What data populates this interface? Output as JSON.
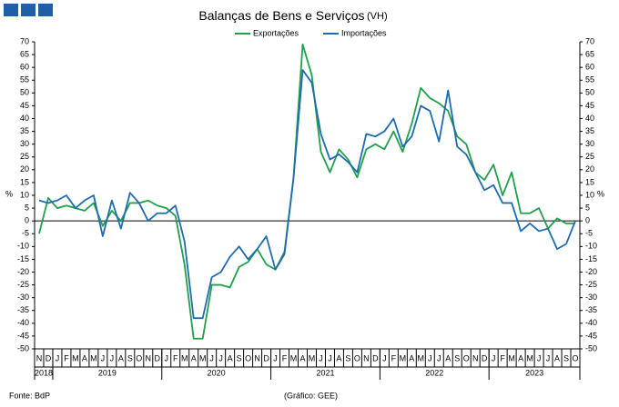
{
  "chart_data": {
    "type": "line",
    "title": "Balanças de Bens e Serviços",
    "title_note": "(VH)",
    "ylabel": "%",
    "y2label": "%",
    "source": "Fonte: BdP",
    "credit": "(Gráfico: GEE)",
    "categories": [
      "N",
      "D",
      "J",
      "F",
      "M",
      "A",
      "M",
      "J",
      "J",
      "A",
      "S",
      "O",
      "N",
      "D",
      "J",
      "F",
      "M",
      "A",
      "M",
      "J",
      "J",
      "A",
      "S",
      "O",
      "N",
      "D",
      "J",
      "F",
      "M",
      "A",
      "M",
      "J",
      "J",
      "A",
      "S",
      "O",
      "N",
      "D",
      "J",
      "F",
      "M",
      "A",
      "M",
      "J",
      "J",
      "A",
      "S",
      "O",
      "N",
      "D",
      "J",
      "F",
      "M",
      "A",
      "M",
      "J",
      "J",
      "A",
      "S",
      "O"
    ],
    "x_groups": [
      "2018",
      "2019",
      "2020",
      "2021",
      "2022",
      "2023"
    ],
    "series": [
      {
        "name": "Exportações",
        "color": "#1fa04a",
        "values": [
          -5,
          9,
          5,
          6,
          5,
          4,
          7,
          -2,
          4,
          0,
          7,
          7,
          8,
          6,
          5,
          2,
          -17,
          -46,
          -46,
          -25,
          -25,
          -26,
          -18,
          -16,
          -11,
          -17,
          -19,
          -12,
          17,
          69,
          57,
          27,
          19,
          28,
          24,
          17,
          28,
          30,
          28,
          35,
          27,
          38,
          52,
          48,
          46,
          43,
          33,
          30,
          19,
          16,
          22,
          10,
          19,
          3,
          3,
          5,
          -3,
          1,
          -1,
          -1
        ]
      },
      {
        "name": "Importações",
        "color": "#1f6bb0",
        "values": [
          8,
          7,
          8,
          10,
          5,
          8,
          10,
          -6,
          8,
          -3,
          11,
          7,
          0,
          3,
          3,
          6,
          -8,
          -38,
          -38,
          -22,
          -20,
          -14,
          -10,
          -15,
          -11,
          -6,
          -19,
          -13,
          17,
          59,
          54,
          34,
          24,
          26,
          23,
          19,
          34,
          33,
          35,
          40,
          29,
          33,
          45,
          43,
          31,
          51,
          29,
          26,
          19,
          12,
          14,
          7,
          7,
          -4,
          -1,
          -4,
          -3,
          -11,
          -9,
          0
        ]
      }
    ],
    "ylim": [
      -50,
      70
    ],
    "yticks": [
      -50,
      -45,
      -40,
      -35,
      -30,
      -25,
      -20,
      -15,
      -10,
      -5,
      0,
      5,
      10,
      15,
      20,
      25,
      30,
      35,
      40,
      45,
      50,
      55,
      60,
      65,
      70
    ],
    "y2lim": [
      -50,
      70
    ],
    "y2ticks": [
      -50,
      -45,
      -40,
      -35,
      -30,
      -25,
      -20,
      -15,
      -10,
      -5,
      0,
      5,
      10,
      15,
      20,
      25,
      30,
      35,
      40,
      45,
      50,
      55,
      60,
      65,
      70
    ],
    "grid": false
  }
}
